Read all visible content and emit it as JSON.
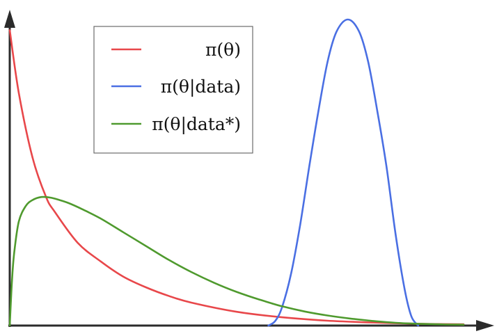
{
  "chart_data": {
    "type": "line",
    "title": "",
    "xlabel": "",
    "ylabel": "",
    "xlim": [
      0,
      10
    ],
    "ylim": [
      0,
      1
    ],
    "grid": false,
    "tick_labels": false,
    "legend_position": "top-left",
    "series": [
      {
        "name": "π(θ)",
        "color": "#e8474a",
        "x": [
          0,
          0.2,
          0.5,
          0.8,
          1.0,
          1.5,
          2.0,
          2.5,
          3.0,
          3.5,
          4.0,
          5.0,
          6.0,
          7.0,
          8.0,
          9.0,
          10.0
        ],
        "y": [
          0.965,
          0.76,
          0.55,
          0.42,
          0.37,
          0.27,
          0.21,
          0.16,
          0.125,
          0.097,
          0.075,
          0.045,
          0.027,
          0.016,
          0.01,
          0.006,
          0.004
        ]
      },
      {
        "name": "π(θ|data)",
        "color": "#4a6fe3",
        "x": [
          5.7,
          5.85,
          6.0,
          6.2,
          6.4,
          6.6,
          6.8,
          7.0,
          7.2,
          7.45,
          7.7,
          7.9,
          8.1,
          8.3,
          8.5,
          8.7,
          8.85,
          9.0
        ],
        "y": [
          0.0,
          0.015,
          0.06,
          0.17,
          0.33,
          0.52,
          0.7,
          0.86,
          0.96,
          1.0,
          0.96,
          0.86,
          0.7,
          0.52,
          0.3,
          0.12,
          0.03,
          0.0
        ]
      },
      {
        "name": "π(θ|data*)",
        "color": "#4f9a2e",
        "x": [
          0,
          0.05,
          0.1,
          0.2,
          0.35,
          0.5,
          0.7,
          0.9,
          1.1,
          1.3,
          1.6,
          2.0,
          2.5,
          3.0,
          3.5,
          4.0,
          4.5,
          5.0,
          5.5,
          6.0,
          6.5,
          7.0,
          7.5,
          8.0,
          8.5,
          9.0,
          9.5,
          10.0
        ],
        "y": [
          0.0,
          0.15,
          0.24,
          0.34,
          0.39,
          0.41,
          0.42,
          0.418,
          0.41,
          0.4,
          0.38,
          0.35,
          0.305,
          0.26,
          0.215,
          0.175,
          0.14,
          0.11,
          0.085,
          0.063,
          0.046,
          0.033,
          0.023,
          0.015,
          0.009,
          0.006,
          0.004,
          0.003
        ]
      }
    ]
  }
}
